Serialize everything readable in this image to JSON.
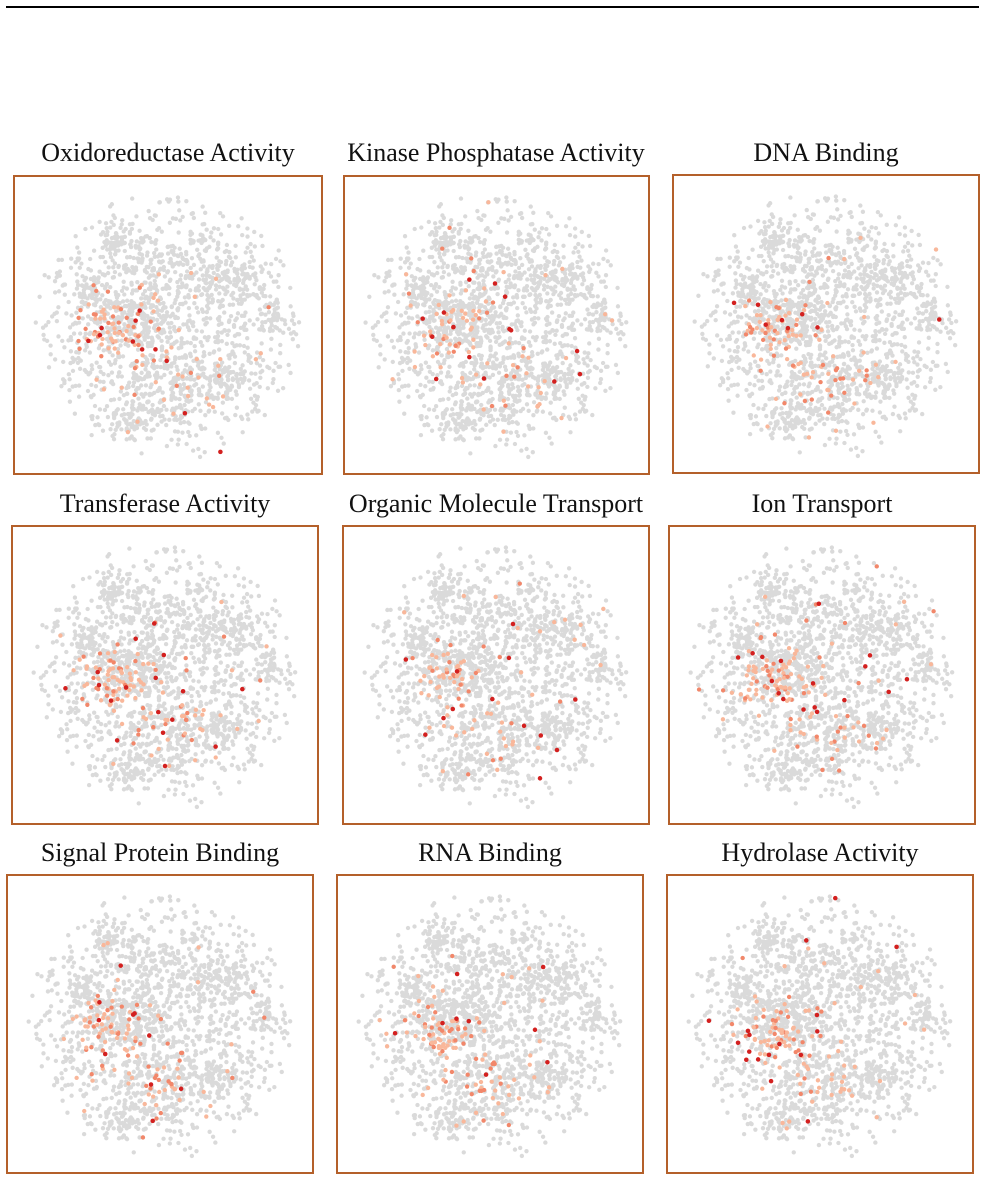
{
  "figure": {
    "point_colors": {
      "background": "#dadada",
      "low": "#f9b79a",
      "mid": "#f2876a",
      "high": "#d3201f"
    },
    "frame_color": "#b4602a"
  },
  "chart_data": [
    {
      "type": "scatter",
      "title": "Oxidoreductase Activity",
      "xlim": [
        -1,
        1
      ],
      "ylim": [
        -1,
        1
      ],
      "highlight_seed": 11,
      "highlight_pattern": "dense light-red points in left-center cluster, scattered red points in center and lower region"
    },
    {
      "type": "scatter",
      "title": "Kinase Phosphatase Activity",
      "xlim": [
        -1,
        1
      ],
      "ylim": [
        -1,
        1
      ],
      "highlight_seed": 23,
      "highlight_pattern": "light-red points concentrated in left-center cluster and lower center"
    },
    {
      "type": "scatter",
      "title": "DNA Binding",
      "xlim": [
        -1,
        1
      ],
      "ylim": [
        -1,
        1
      ],
      "highlight_seed": 37,
      "highlight_pattern": "dark red points in left cluster, light-red points in left-center and lower area"
    },
    {
      "type": "scatter",
      "title": "Transferase Activity",
      "xlim": [
        -1,
        1
      ],
      "ylim": [
        -1,
        1
      ],
      "highlight_seed": 41,
      "highlight_pattern": "light-red points in left-center, a few red points in center"
    },
    {
      "type": "scatter",
      "title": "Organic Molecule Transport",
      "xlim": [
        -1,
        1
      ],
      "ylim": [
        -1,
        1
      ],
      "highlight_seed": 53,
      "highlight_pattern": "light-red points in left-center, a few red points in lower center"
    },
    {
      "type": "scatter",
      "title": "Ion Transport",
      "xlim": [
        -1,
        1
      ],
      "ylim": [
        -1,
        1
      ],
      "highlight_seed": 67,
      "highlight_pattern": "light-red points in left-center, red points in lower right of cluster"
    },
    {
      "type": "scatter",
      "title": "Signal Protein Binding",
      "xlim": [
        -1,
        1
      ],
      "ylim": [
        -1,
        1
      ],
      "highlight_seed": 71,
      "highlight_pattern": "red and light-red points in left cluster and lower center"
    },
    {
      "type": "scatter",
      "title": "RNA Binding",
      "xlim": [
        -1,
        1
      ],
      "ylim": [
        -1,
        1
      ],
      "highlight_seed": 83,
      "highlight_pattern": "dark red points in left cluster, light-red points across left-center"
    },
    {
      "type": "scatter",
      "title": "Hydrolase Activity",
      "xlim": [
        -1,
        1
      ],
      "ylim": [
        -1,
        1
      ],
      "highlight_seed": 97,
      "highlight_pattern": "red points in left-center and lower right, light-red points in center"
    }
  ]
}
